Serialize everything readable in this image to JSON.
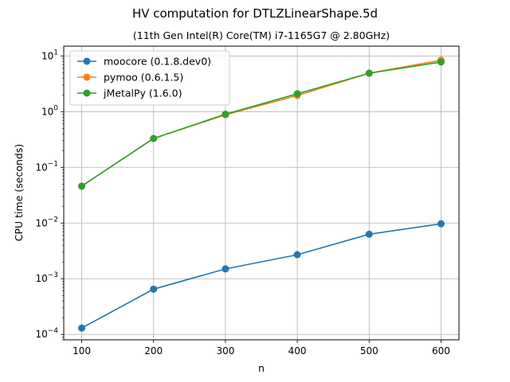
{
  "chart_data": {
    "type": "line",
    "title": "HV computation for DTLZLinearShape.5d",
    "subtitle": "(11th Gen Intel(R) Core(TM) i7-1165G7 @ 2.80GHz)",
    "xlabel": "n",
    "ylabel": "CPU time (seconds)",
    "x": [
      100,
      200,
      300,
      400,
      500,
      600
    ],
    "x_ticks": [
      100,
      200,
      300,
      400,
      500,
      600
    ],
    "xlim": [
      75,
      625
    ],
    "yscale": "log",
    "ylim": [
      8e-05,
      15
    ],
    "y_ticks": [
      {
        "value": 0.0001,
        "mantissa": "10",
        "exp": "−4"
      },
      {
        "value": 0.001,
        "mantissa": "10",
        "exp": "−3"
      },
      {
        "value": 0.01,
        "mantissa": "10",
        "exp": "−2"
      },
      {
        "value": 0.1,
        "mantissa": "10",
        "exp": "−1"
      },
      {
        "value": 1,
        "mantissa": "10",
        "exp": "0"
      },
      {
        "value": 10,
        "mantissa": "10",
        "exp": "1"
      }
    ],
    "grid": true,
    "legend_position": "top-left",
    "series": [
      {
        "name": "moocore (0.1.8.dev0)",
        "color": "#1f77b4",
        "values": [
          0.00013,
          0.00065,
          0.0015,
          0.0027,
          0.0063,
          0.0097
        ]
      },
      {
        "name": "pymoo (0.6.1.5)",
        "color": "#ff7f0e",
        "values": [
          0.046,
          0.33,
          0.88,
          1.95,
          4.9,
          8.4
        ]
      },
      {
        "name": "jMetalPy (1.6.0)",
        "color": "#2ca02c",
        "values": [
          0.046,
          0.33,
          0.9,
          2.1,
          4.9,
          7.8
        ]
      }
    ]
  }
}
